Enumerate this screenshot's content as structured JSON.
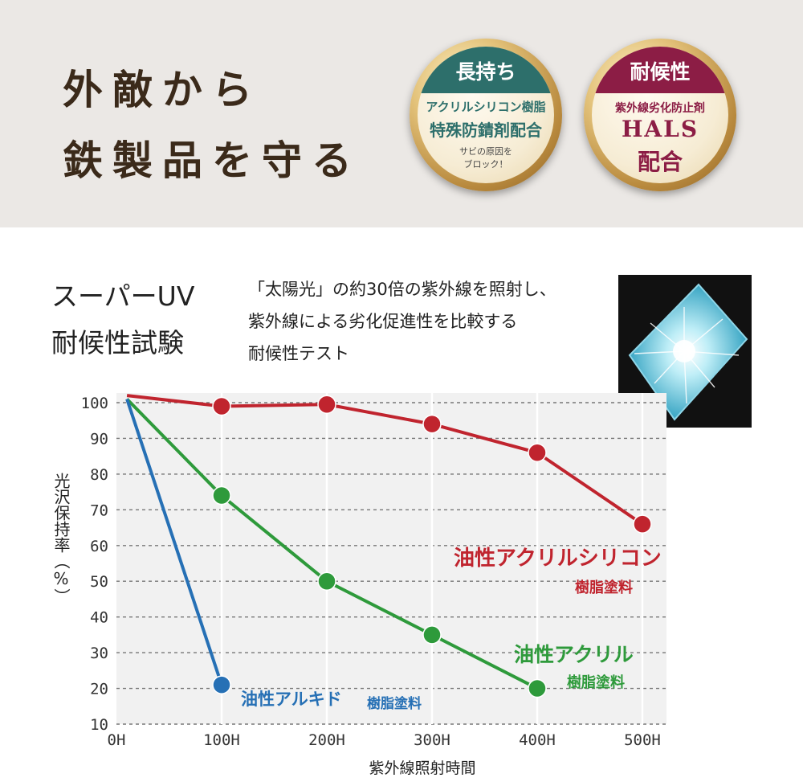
{
  "header": {
    "headline_line1": "外敵から",
    "headline_line2": "鉄製品を守る"
  },
  "badges": [
    {
      "band": "長持ち",
      "line1": "アクリルシリコン樹脂",
      "line2": "特殊防錆剤配合",
      "line3": "サビの原因を",
      "line4": "ブロック！",
      "color": "#2d6f6b"
    },
    {
      "band": "耐候性",
      "line1": "紫外線劣化防止剤",
      "line2": "HALS",
      "line3": "配合",
      "color": "#8c1d45"
    }
  ],
  "test": {
    "title_line1": "スーパーUV",
    "title_line2": "耐候性試験",
    "description_line1": "「太陽光」の約30倍の紫外線を照射し、",
    "description_line2": "紫外線による劣化促進性を比較する",
    "description_line3": "耐候性テスト"
  },
  "chart_data": {
    "type": "line",
    "xlabel": "紫外線照射時間",
    "ylabel": "光沢保持率（%）",
    "x_ticks": [
      "0H",
      "100H",
      "200H",
      "300H",
      "400H",
      "500H"
    ],
    "y_ticks": [
      10,
      20,
      30,
      40,
      50,
      60,
      70,
      80,
      90,
      100
    ],
    "xlim": [
      0,
      500
    ],
    "ylim": [
      10,
      100
    ],
    "grid": "dashed horizontal, solid vertical",
    "series": [
      {
        "name_main": "油性アクリルシリコン",
        "name_sub": "樹脂塗料",
        "color": "#c0242e",
        "x": [
          0,
          100,
          200,
          300,
          400,
          500
        ],
        "y": [
          102,
          99,
          99.5,
          94,
          86,
          66
        ]
      },
      {
        "name_main": "油性アクリル",
        "name_sub": "樹脂塗料",
        "color": "#2e9a3b",
        "x": [
          0,
          100,
          200,
          300,
          400
        ],
        "y": [
          101,
          74,
          50,
          35,
          20
        ]
      },
      {
        "name_main": "油性アルキド",
        "name_sub": "樹脂塗料",
        "color": "#2670b5",
        "x": [
          0,
          100
        ],
        "y": [
          101,
          21
        ]
      }
    ]
  }
}
